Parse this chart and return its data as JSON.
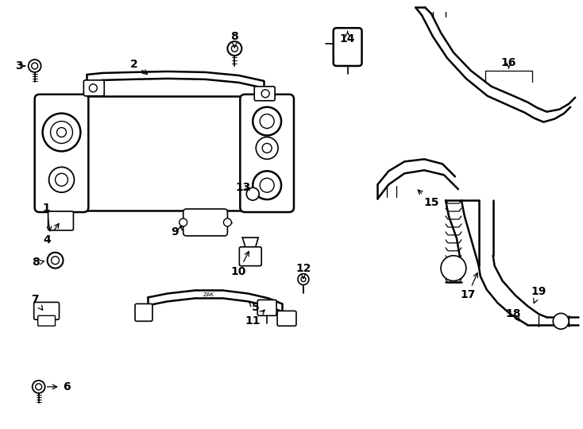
{
  "bg_color": "#ffffff",
  "line_color": "#000000",
  "lw": 1.8,
  "lw_thin": 0.8,
  "fs": 10
}
